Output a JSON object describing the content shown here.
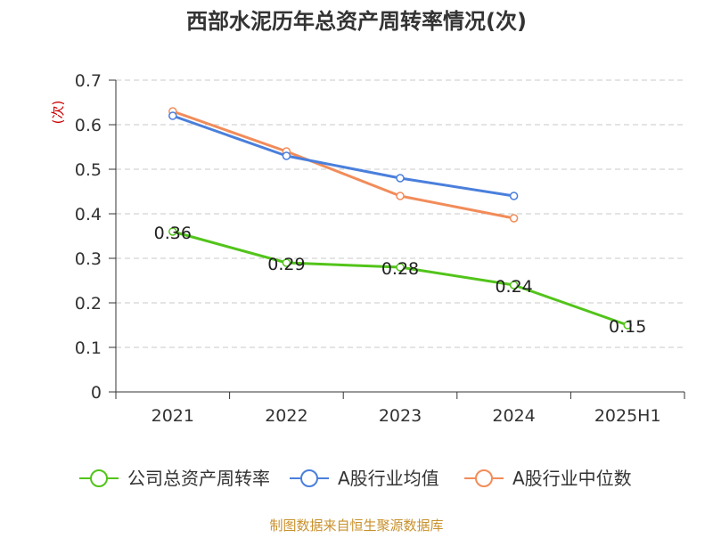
{
  "chart_data": {
    "type": "line",
    "title": "西部水泥历年总资产周转率情况(次)",
    "ylabel": "(次)",
    "categories": [
      "2021",
      "2022",
      "2023",
      "2024",
      "2025H1"
    ],
    "ylim": [
      0,
      0.7
    ],
    "yticks": [
      0,
      0.1,
      0.2,
      0.3,
      0.4,
      0.5,
      0.6,
      0.7
    ],
    "ytick_labels": [
      "0",
      "0.1",
      "0.2",
      "0.3",
      "0.4",
      "0.5",
      "0.6",
      "0.7"
    ],
    "grid": true,
    "legend_position": "bottom",
    "series": [
      {
        "name": "公司总资产周转率",
        "color": "#52c41a",
        "values": [
          0.36,
          0.29,
          0.28,
          0.24,
          0.15
        ],
        "labels": [
          "0.36",
          "0.29",
          "0.28",
          "0.24",
          "0.15"
        ]
      },
      {
        "name": "A股行业均值",
        "color": "#4a7fdc",
        "values": [
          0.62,
          0.53,
          0.48,
          0.44,
          null
        ]
      },
      {
        "name": "A股行业中位数",
        "color": "#f28c5a",
        "values": [
          0.63,
          0.54,
          0.44,
          0.39,
          null
        ]
      }
    ],
    "source": "制图数据来自恒生聚源数据库"
  }
}
